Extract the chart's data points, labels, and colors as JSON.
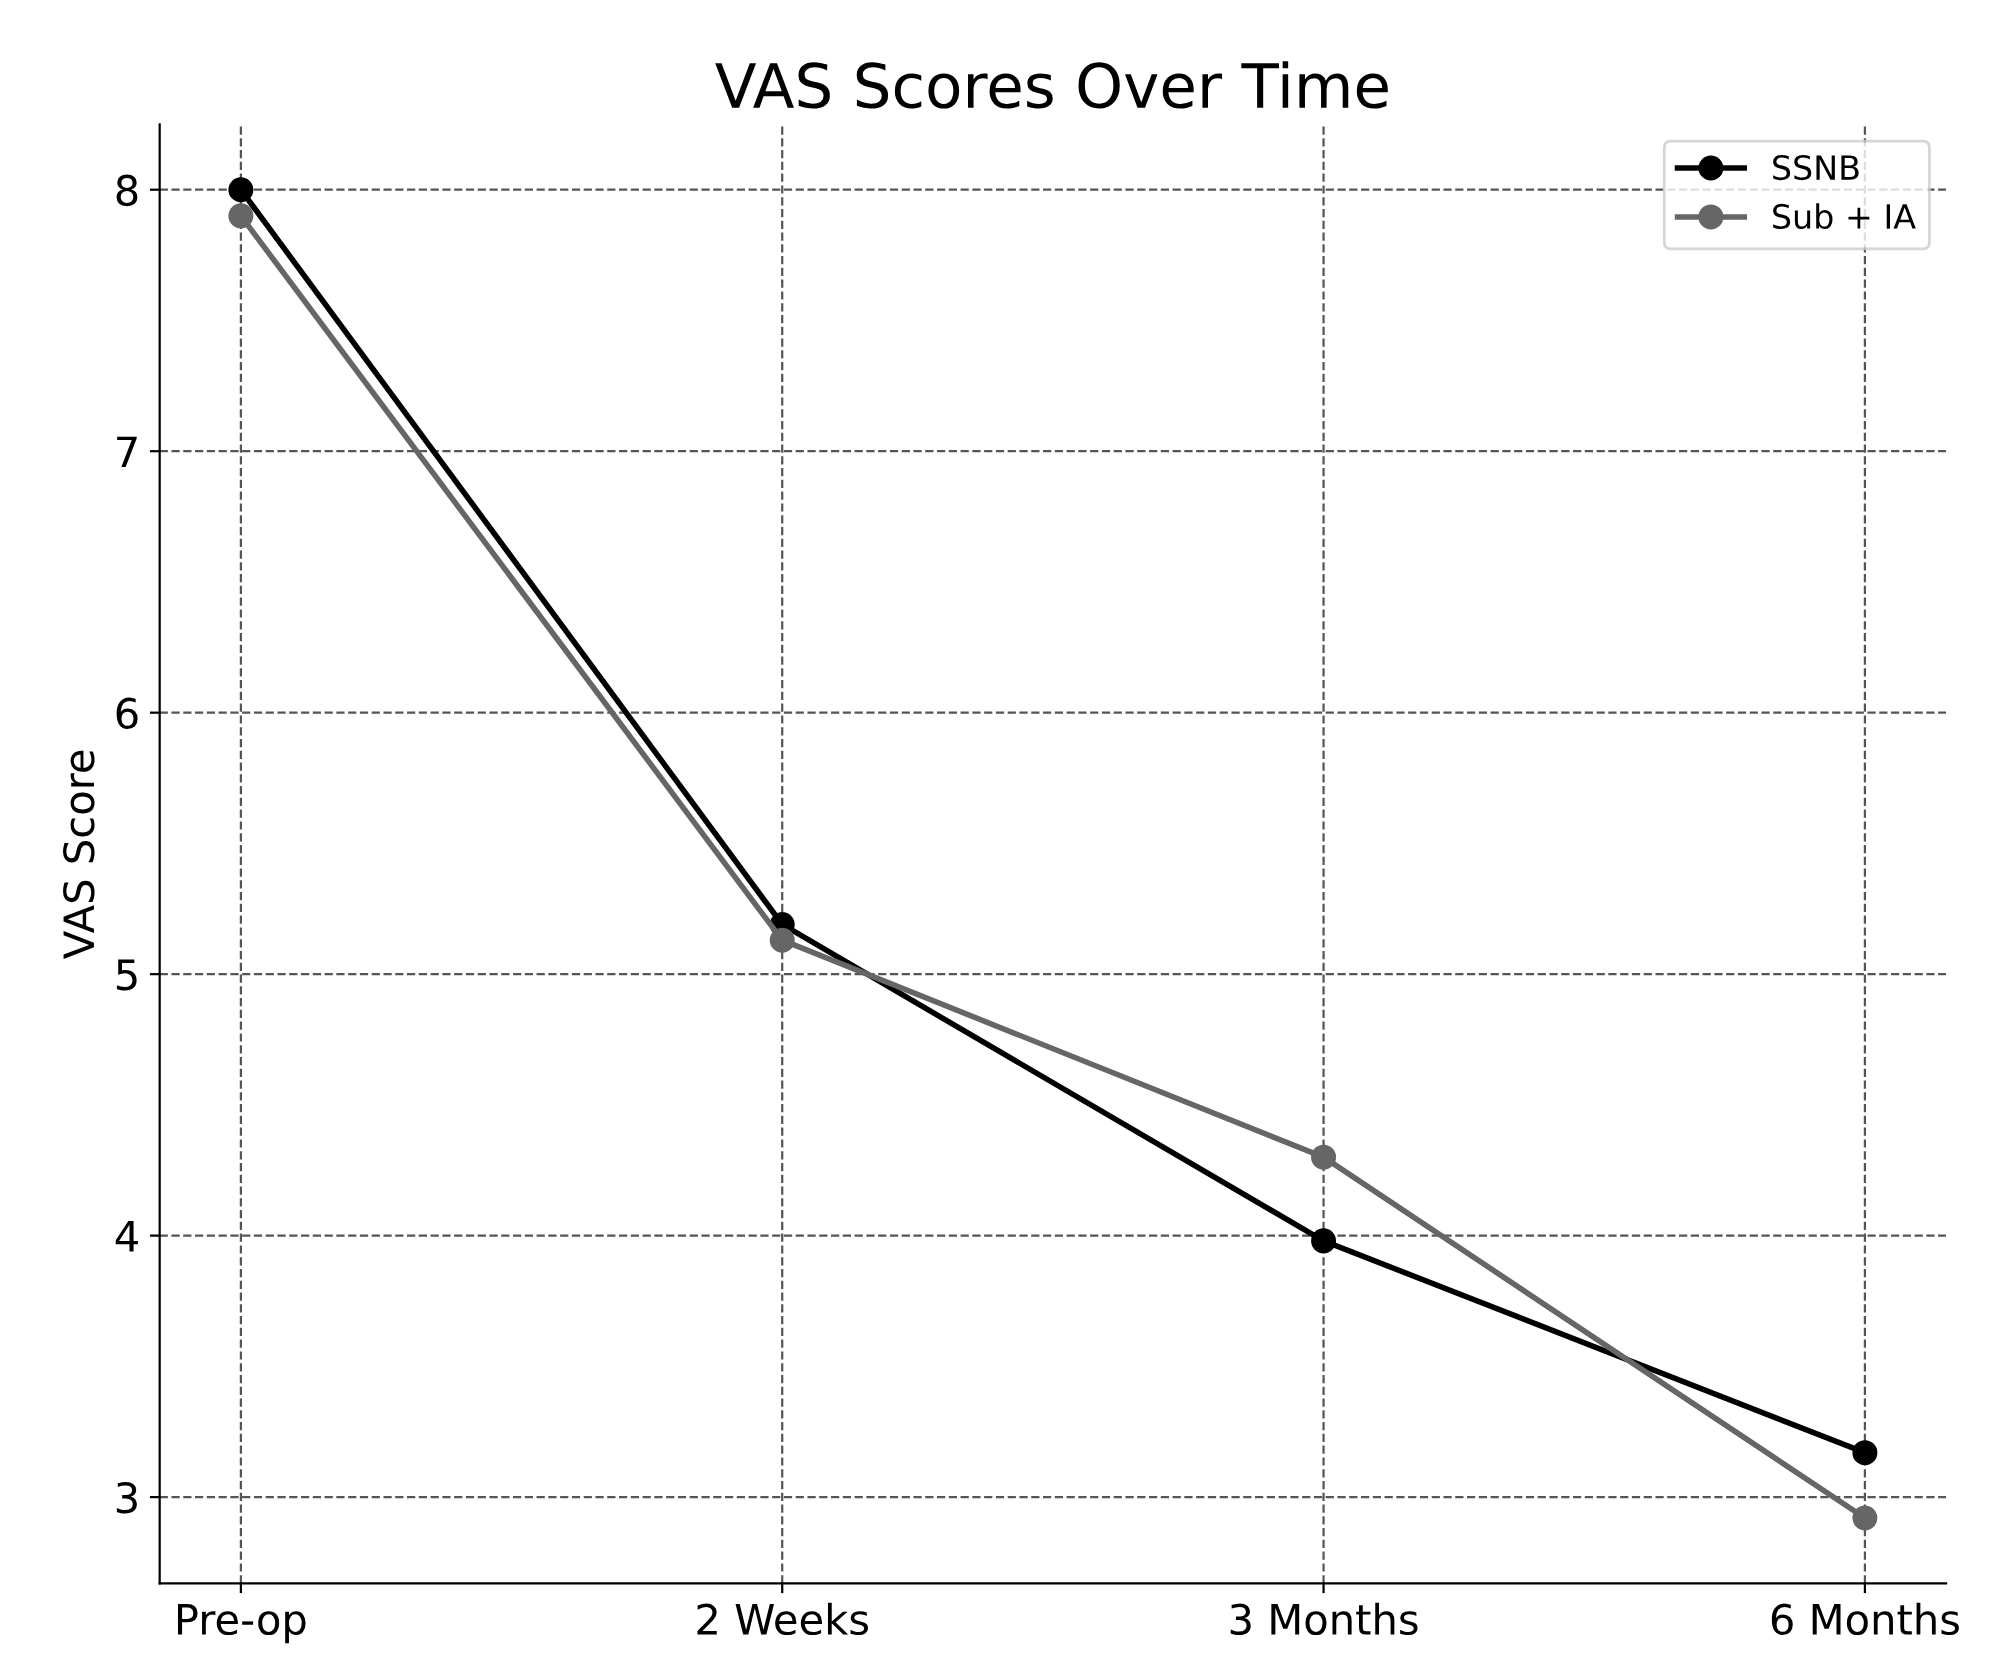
{
  "chart_data": {
    "type": "line",
    "title": "VAS Scores Over Time",
    "ylabel": "VAS Score",
    "categories": [
      "Pre-op",
      "2 Weeks",
      "3 Months",
      "6 Months"
    ],
    "series": [
      {
        "name": "SSNB",
        "color": "#000000",
        "values": [
          8.0,
          5.19,
          3.98,
          3.17
        ]
      },
      {
        "name": "Sub + IA",
        "color": "#666666",
        "values": [
          7.9,
          5.13,
          4.3,
          2.92
        ]
      }
    ],
    "ylim": [
      2.67,
      8.25
    ],
    "yticks": [
      3,
      4,
      5,
      6,
      7,
      8
    ],
    "grid": true,
    "legend": "top right",
    "marker": "circle",
    "line_style": "solid"
  }
}
